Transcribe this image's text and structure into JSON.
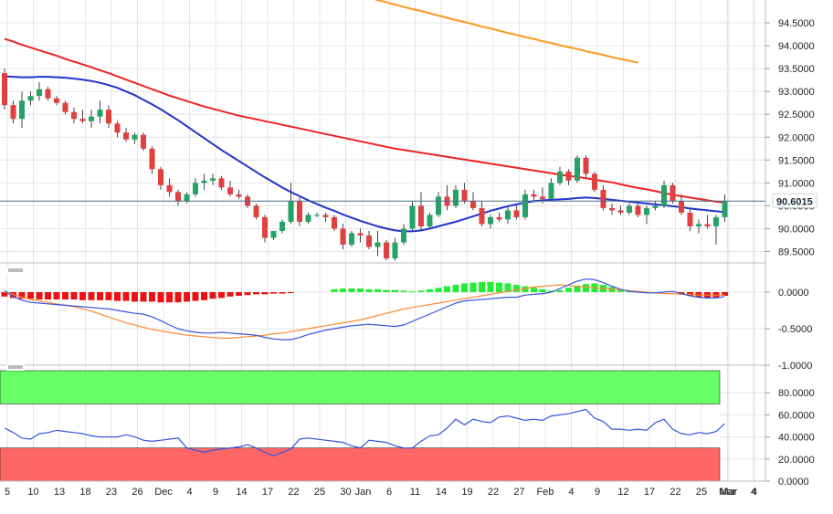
{
  "colors": {
    "up": "#26a269",
    "down": "#e0413f",
    "wick": "#444444",
    "sma20": "#2233cc",
    "sma100": "#ee2222",
    "sma200": "#ff9922",
    "grid": "#e4e4e4",
    "axis_text": "#222222",
    "price_line": "#4a6b8a",
    "price_tag_bg": "#ffffff",
    "hist_pos": "#22ee33",
    "hist_neg": "#ee1111",
    "macd_line": "#3355dd",
    "signal_line": "#ff8833",
    "overbought": "#66ff66",
    "oversold": "#ff6666",
    "rsi_line": "#3355dd"
  },
  "chart_data": [
    {
      "type": "candlestick",
      "panel": "price",
      "current_price": 90.6015,
      "current_price_label": "90.6015",
      "yticks": [
        "94.5000",
        "94.0000",
        "93.5000",
        "93.0000",
        "92.5000",
        "92.0000",
        "91.5000",
        "91.0000",
        "90.5000",
        "90.0000",
        "89.5000"
      ],
      "ylim": [
        89.25,
        95.0
      ],
      "x_labels": [
        "5",
        "10",
        "13",
        "18",
        "23",
        "26",
        "Dec",
        "4",
        "9",
        "14",
        "17",
        "22",
        "25",
        "30",
        "Jan",
        "6",
        "11",
        "14",
        "19",
        "22",
        "27",
        "Feb",
        "4",
        "9",
        "12",
        "17",
        "22",
        "25",
        "Mar",
        "4"
      ],
      "candles": [
        [
          93.4,
          93.5,
          92.6,
          92.7
        ],
        [
          92.7,
          92.8,
          92.3,
          92.4
        ],
        [
          92.4,
          93.0,
          92.2,
          92.8
        ],
        [
          92.8,
          93.0,
          92.7,
          92.9
        ],
        [
          92.9,
          93.2,
          92.8,
          93.05
        ],
        [
          93.05,
          93.1,
          92.8,
          92.85
        ],
        [
          92.85,
          92.9,
          92.7,
          92.75
        ],
        [
          92.75,
          92.8,
          92.5,
          92.55
        ],
        [
          92.55,
          92.65,
          92.3,
          92.4
        ],
        [
          92.4,
          92.6,
          92.3,
          92.35
        ],
        [
          92.35,
          92.6,
          92.2,
          92.45
        ],
        [
          92.45,
          92.8,
          92.3,
          92.6
        ],
        [
          92.6,
          92.7,
          92.2,
          92.3
        ],
        [
          92.3,
          92.35,
          92.0,
          92.1
        ],
        [
          92.1,
          92.2,
          91.9,
          91.95
        ],
        [
          91.95,
          92.1,
          91.85,
          92.05
        ],
        [
          92.05,
          92.1,
          91.7,
          91.75
        ],
        [
          91.75,
          91.8,
          91.2,
          91.3
        ],
        [
          91.3,
          91.35,
          90.85,
          90.95
        ],
        [
          90.95,
          91.1,
          90.7,
          90.8
        ],
        [
          90.8,
          90.85,
          90.5,
          90.6
        ],
        [
          90.6,
          90.8,
          90.55,
          90.75
        ],
        [
          90.75,
          91.1,
          90.7,
          91.0
        ],
        [
          91.0,
          91.2,
          90.85,
          91.05
        ],
        [
          91.05,
          91.2,
          90.95,
          91.1
        ],
        [
          91.1,
          91.15,
          90.85,
          90.9
        ],
        [
          90.9,
          91.05,
          90.7,
          90.75
        ],
        [
          90.75,
          90.85,
          90.65,
          90.7
        ],
        [
          90.7,
          90.75,
          90.45,
          90.5
        ],
        [
          90.5,
          90.55,
          90.2,
          90.25
        ],
        [
          90.25,
          90.3,
          89.7,
          89.8
        ],
        [
          89.8,
          89.95,
          89.75,
          89.95
        ],
        [
          89.95,
          90.2,
          89.9,
          90.15
        ],
        [
          90.15,
          91.0,
          90.1,
          90.6
        ],
        [
          90.6,
          90.7,
          90.05,
          90.15
        ],
        [
          90.15,
          90.35,
          90.1,
          90.3
        ],
        [
          90.3,
          90.35,
          90.25,
          90.3
        ],
        [
          90.3,
          90.35,
          90.15,
          90.25
        ],
        [
          90.25,
          90.3,
          89.95,
          90.0
        ],
        [
          90.0,
          90.1,
          89.55,
          89.65
        ],
        [
          89.65,
          89.95,
          89.6,
          89.9
        ],
        [
          89.9,
          90.0,
          89.7,
          89.85
        ],
        [
          89.85,
          89.95,
          89.55,
          89.6
        ],
        [
          89.6,
          89.95,
          89.4,
          89.7
        ],
        [
          89.7,
          89.75,
          89.3,
          89.35
        ],
        [
          89.35,
          89.8,
          89.3,
          89.7
        ],
        [
          89.7,
          90.1,
          89.65,
          90.0
        ],
        [
          90.0,
          90.6,
          89.95,
          90.5
        ],
        [
          90.5,
          90.8,
          89.95,
          90.05
        ],
        [
          90.05,
          90.35,
          90.0,
          90.3
        ],
        [
          90.3,
          90.8,
          90.25,
          90.7
        ],
        [
          90.7,
          90.95,
          90.4,
          90.5
        ],
        [
          90.5,
          90.95,
          90.45,
          90.85
        ],
        [
          90.85,
          91.0,
          90.55,
          90.6
        ],
        [
          90.6,
          90.8,
          90.4,
          90.45
        ],
        [
          90.45,
          90.6,
          90.05,
          90.1
        ],
        [
          90.1,
          90.3,
          90.0,
          90.25
        ],
        [
          90.25,
          90.35,
          90.15,
          90.2
        ],
        [
          90.2,
          90.5,
          90.1,
          90.4
        ],
        [
          90.4,
          90.5,
          90.2,
          90.25
        ],
        [
          90.25,
          90.85,
          90.2,
          90.75
        ],
        [
          90.75,
          90.85,
          90.6,
          90.7
        ],
        [
          90.7,
          90.9,
          90.55,
          90.65
        ],
        [
          90.65,
          91.1,
          90.6,
          91.0
        ],
        [
          91.0,
          91.35,
          90.95,
          91.25
        ],
        [
          91.25,
          91.3,
          90.95,
          91.05
        ],
        [
          91.05,
          91.6,
          91.0,
          91.55
        ],
        [
          91.55,
          91.6,
          91.1,
          91.2
        ],
        [
          91.2,
          91.25,
          90.8,
          90.85
        ],
        [
          90.85,
          90.95,
          90.4,
          90.45
        ],
        [
          90.45,
          90.55,
          90.3,
          90.4
        ],
        [
          90.4,
          90.5,
          90.3,
          90.35
        ],
        [
          90.35,
          90.55,
          90.3,
          90.5
        ],
        [
          90.5,
          90.55,
          90.25,
          90.3
        ],
        [
          90.3,
          90.5,
          90.1,
          90.45
        ],
        [
          90.45,
          90.6,
          90.4,
          90.5
        ],
        [
          90.5,
          91.05,
          90.45,
          90.95
        ],
        [
          90.95,
          91.0,
          90.55,
          90.6
        ],
        [
          90.6,
          90.75,
          90.3,
          90.35
        ],
        [
          90.35,
          90.45,
          89.95,
          90.05
        ],
        [
          90.05,
          90.2,
          89.9,
          90.1
        ],
        [
          90.1,
          90.3,
          90.0,
          90.05
        ],
        [
          90.05,
          90.3,
          89.65,
          90.25
        ],
        [
          90.25,
          90.75,
          90.15,
          90.6
        ]
      ],
      "sma20": [
        93.33,
        93.32,
        93.31,
        93.31,
        93.32,
        93.32,
        93.31,
        93.3,
        93.28,
        93.26,
        93.23,
        93.19,
        93.14,
        93.08,
        93.0,
        92.92,
        92.82,
        92.72,
        92.61,
        92.49,
        92.37,
        92.24,
        92.11,
        91.98,
        91.85,
        91.72,
        91.6,
        91.48,
        91.36,
        91.24,
        91.12,
        91.01,
        90.9,
        90.8,
        90.71,
        90.62,
        90.54,
        90.46,
        90.39,
        90.31,
        90.24,
        90.17,
        90.11,
        90.05,
        90.0,
        89.96,
        89.94,
        89.94,
        89.96,
        90.0,
        90.05,
        90.1,
        90.15,
        90.21,
        90.27,
        90.33,
        90.39,
        90.44,
        90.49,
        90.53,
        90.57,
        90.6,
        90.62,
        90.63,
        90.64,
        90.65,
        90.67,
        90.68,
        90.67,
        90.65,
        90.63,
        90.61,
        90.59,
        90.57,
        90.55,
        90.53,
        90.51,
        90.49,
        90.47,
        90.44,
        90.42,
        90.4,
        90.38,
        90.36
      ],
      "sma100": [
        94.15,
        94.09,
        94.02,
        93.96,
        93.9,
        93.84,
        93.78,
        93.71,
        93.65,
        93.59,
        93.53,
        93.46,
        93.4,
        93.33,
        93.26,
        93.19,
        93.12,
        93.05,
        92.98,
        92.91,
        92.85,
        92.79,
        92.73,
        92.67,
        92.62,
        92.57,
        92.52,
        92.47,
        92.43,
        92.39,
        92.35,
        92.31,
        92.27,
        92.23,
        92.19,
        92.15,
        92.11,
        92.07,
        92.03,
        91.99,
        91.95,
        91.91,
        91.87,
        91.83,
        91.79,
        91.75,
        91.72,
        91.69,
        91.66,
        91.63,
        91.6,
        91.57,
        91.54,
        91.51,
        91.48,
        91.45,
        91.42,
        91.39,
        91.36,
        91.33,
        91.3,
        91.27,
        91.24,
        91.21,
        91.18,
        91.15,
        91.13,
        91.1,
        91.07,
        91.04,
        91.01,
        90.97,
        90.93,
        90.89,
        90.86,
        90.82,
        90.78,
        90.74,
        90.71,
        90.68,
        90.65,
        90.62,
        90.59,
        90.57
      ],
      "sma200_visible_from_index": 51,
      "sma200": [
        95.1,
        95.05,
        95.0,
        94.95,
        94.9,
        94.85,
        94.8,
        94.76,
        94.71,
        94.66,
        94.61,
        94.56,
        94.52,
        94.47,
        94.42,
        94.38,
        94.33,
        94.28,
        94.24,
        94.19,
        94.15,
        94.1,
        94.06,
        94.01,
        93.97,
        93.93,
        93.88,
        93.84,
        93.8,
        93.75,
        93.71,
        93.67,
        93.63
      ]
    },
    {
      "type": "bar+line",
      "panel": "macd",
      "yticks": [
        "0.0000",
        "-0.5000",
        "-1.0000"
      ],
      "ylim": [
        -1.0,
        0.25
      ],
      "histogram": [
        -0.06,
        -0.08,
        -0.09,
        -0.09,
        -0.1,
        -0.1,
        -0.1,
        -0.1,
        -0.1,
        -0.11,
        -0.11,
        -0.11,
        -0.11,
        -0.12,
        -0.12,
        -0.13,
        -0.13,
        -0.13,
        -0.14,
        -0.14,
        -0.14,
        -0.13,
        -0.12,
        -0.11,
        -0.09,
        -0.08,
        -0.06,
        -0.05,
        -0.04,
        -0.03,
        -0.03,
        -0.02,
        -0.02,
        -0.01,
        0,
        0,
        0,
        0,
        0.04,
        0.05,
        0.05,
        0.05,
        0.04,
        0.04,
        0.03,
        0.03,
        0.02,
        0.01,
        0.02,
        0.04,
        0.06,
        0.08,
        0.1,
        0.12,
        0.13,
        0.14,
        0.14,
        0.13,
        0.12,
        0.1,
        0.08,
        0.06,
        0.04,
        0.02,
        0.03,
        0.06,
        0.09,
        0.11,
        0.12,
        0.1,
        0.07,
        0.04,
        0.02,
        0,
        0,
        0,
        0,
        0,
        -0.03,
        -0.05,
        -0.07,
        -0.08,
        -0.07,
        -0.05
      ],
      "macd": [
        0.02,
        -0.06,
        -0.11,
        -0.14,
        -0.15,
        -0.16,
        -0.17,
        -0.18,
        -0.19,
        -0.2,
        -0.21,
        -0.22,
        -0.23,
        -0.25,
        -0.27,
        -0.29,
        -0.3,
        -0.34,
        -0.39,
        -0.45,
        -0.5,
        -0.53,
        -0.55,
        -0.56,
        -0.56,
        -0.55,
        -0.56,
        -0.57,
        -0.58,
        -0.59,
        -0.62,
        -0.64,
        -0.65,
        -0.65,
        -0.62,
        -0.58,
        -0.55,
        -0.52,
        -0.5,
        -0.48,
        -0.46,
        -0.45,
        -0.44,
        -0.45,
        -0.46,
        -0.47,
        -0.45,
        -0.4,
        -0.35,
        -0.3,
        -0.25,
        -0.2,
        -0.15,
        -0.12,
        -0.11,
        -0.1,
        -0.09,
        -0.08,
        -0.07,
        -0.07,
        -0.04,
        -0.03,
        -0.02,
        0.0,
        0.05,
        0.1,
        0.15,
        0.18,
        0.17,
        0.13,
        0.08,
        0.04,
        0.01,
        0.0,
        -0.01,
        -0.01,
        0.0,
        0.01,
        -0.02,
        -0.05,
        -0.07,
        -0.08,
        -0.08,
        -0.06
      ],
      "signal": [
        0.0,
        -0.03,
        -0.07,
        -0.1,
        -0.12,
        -0.14,
        -0.16,
        -0.18,
        -0.2,
        -0.23,
        -0.26,
        -0.3,
        -0.34,
        -0.38,
        -0.42,
        -0.45,
        -0.48,
        -0.51,
        -0.53,
        -0.55,
        -0.57,
        -0.59,
        -0.6,
        -0.61,
        -0.62,
        -0.63,
        -0.63,
        -0.62,
        -0.61,
        -0.6,
        -0.59,
        -0.57,
        -0.56,
        -0.54,
        -0.52,
        -0.5,
        -0.48,
        -0.46,
        -0.44,
        -0.42,
        -0.4,
        -0.38,
        -0.35,
        -0.32,
        -0.29,
        -0.26,
        -0.23,
        -0.21,
        -0.19,
        -0.17,
        -0.15,
        -0.13,
        -0.11,
        -0.09,
        -0.07,
        -0.05,
        -0.03,
        -0.01,
        0.01,
        0.03,
        0.05,
        0.07,
        0.08,
        0.09,
        0.1,
        0.09,
        0.08,
        0.07,
        0.06,
        0.05,
        0.04,
        0.03,
        0.02,
        0.01,
        0.0,
        -0.01,
        -0.02,
        -0.02,
        -0.03,
        -0.03,
        -0.04,
        -0.04,
        -0.04,
        -0.04
      ]
    },
    {
      "type": "line",
      "panel": "rsi",
      "yticks": [
        "80.0000",
        "60.0000",
        "40.0000",
        "20.0000",
        "0.0000"
      ],
      "ylim": [
        0,
        100
      ],
      "overbought_band": [
        70,
        100
      ],
      "oversold_band": [
        0,
        30
      ],
      "rsi": [
        48,
        44,
        39,
        38,
        43,
        44,
        46,
        45,
        44,
        43,
        41,
        40,
        40,
        40,
        42,
        40,
        37,
        36,
        37,
        38,
        39,
        30,
        28,
        26,
        28,
        29,
        30,
        31,
        33,
        30,
        26,
        23,
        26,
        29,
        38,
        39,
        38,
        37,
        36,
        35,
        32,
        30,
        37,
        36,
        35,
        32,
        30,
        30,
        36,
        41,
        42,
        48,
        56,
        51,
        56,
        54,
        53,
        58,
        59,
        57,
        55,
        56,
        55,
        59,
        60,
        61,
        63,
        65,
        57,
        54,
        47,
        47,
        46,
        47,
        46,
        53,
        56,
        47,
        43,
        42,
        44,
        43,
        45,
        52
      ]
    }
  ]
}
